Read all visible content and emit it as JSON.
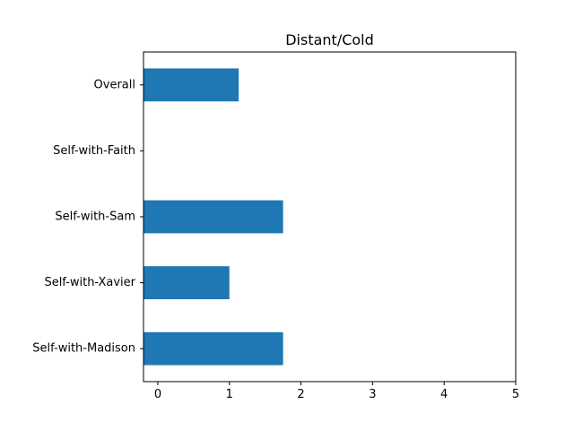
{
  "chart_data": {
    "type": "bar",
    "orientation": "horizontal",
    "title": "Distant/Cold",
    "xlabel": "",
    "ylabel": "",
    "categories": [
      "Overall",
      "Self-with-Faith",
      "Self-with-Sam",
      "Self-with-Xavier",
      "Self-with-Madison"
    ],
    "values": [
      1.13,
      0,
      1.75,
      1.0,
      1.75
    ],
    "xlim": [
      -0.2,
      5
    ],
    "xticks": [
      0,
      1,
      2,
      3,
      4,
      5
    ],
    "bar_color": "#1f77b4",
    "grid": false,
    "legend": "none"
  }
}
